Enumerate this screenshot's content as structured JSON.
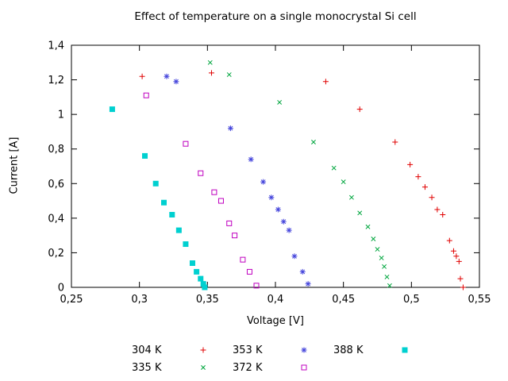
{
  "chart_data": {
    "type": "scatter",
    "title": "Effect of temperature on a single monocrystal Si cell",
    "xlabel": "Voltage [V]",
    "ylabel": "Current [A]",
    "xlim": [
      0.25,
      0.55
    ],
    "ylim": [
      0,
      1.4
    ],
    "grid": false,
    "legend_position": "bottom",
    "x_ticks": [
      {
        "v": 0.25,
        "label": "0,25"
      },
      {
        "v": 0.3,
        "label": "0,3"
      },
      {
        "v": 0.35,
        "label": "0,35"
      },
      {
        "v": 0.4,
        "label": "0,4"
      },
      {
        "v": 0.45,
        "label": "0,45"
      },
      {
        "v": 0.5,
        "label": "0,5"
      },
      {
        "v": 0.55,
        "label": "0,55"
      }
    ],
    "y_ticks": [
      {
        "v": 0.0,
        "label": "0"
      },
      {
        "v": 0.2,
        "label": "0,2"
      },
      {
        "v": 0.4,
        "label": "0,4"
      },
      {
        "v": 0.6,
        "label": "0,6"
      },
      {
        "v": 0.8,
        "label": "0,8"
      },
      {
        "v": 1.0,
        "label": "1"
      },
      {
        "v": 1.2,
        "label": "1,2"
      },
      {
        "v": 1.4,
        "label": "1,4"
      }
    ],
    "series": [
      {
        "name": "304 K",
        "marker": "plus",
        "color": "#e00000",
        "points": [
          [
            0.302,
            1.22
          ],
          [
            0.353,
            1.24
          ],
          [
            0.437,
            1.19
          ],
          [
            0.462,
            1.03
          ],
          [
            0.488,
            0.84
          ],
          [
            0.499,
            0.71
          ],
          [
            0.505,
            0.64
          ],
          [
            0.51,
            0.58
          ],
          [
            0.515,
            0.52
          ],
          [
            0.519,
            0.45
          ],
          [
            0.523,
            0.42
          ],
          [
            0.528,
            0.27
          ],
          [
            0.531,
            0.21
          ],
          [
            0.533,
            0.18
          ],
          [
            0.535,
            0.15
          ],
          [
            0.536,
            0.05
          ],
          [
            0.538,
            0.0
          ]
        ]
      },
      {
        "name": "335 K",
        "marker": "cross",
        "color": "#00a63e",
        "points": [
          [
            0.352,
            1.3
          ],
          [
            0.366,
            1.23
          ],
          [
            0.403,
            1.07
          ],
          [
            0.428,
            0.84
          ],
          [
            0.443,
            0.69
          ],
          [
            0.45,
            0.61
          ],
          [
            0.456,
            0.52
          ],
          [
            0.462,
            0.43
          ],
          [
            0.468,
            0.35
          ],
          [
            0.472,
            0.28
          ],
          [
            0.475,
            0.22
          ],
          [
            0.478,
            0.17
          ],
          [
            0.48,
            0.12
          ],
          [
            0.482,
            0.06
          ],
          [
            0.484,
            0.01
          ]
        ]
      },
      {
        "name": "353 K",
        "marker": "asterisk",
        "color": "#4646dc",
        "points": [
          [
            0.32,
            1.22
          ],
          [
            0.327,
            1.19
          ],
          [
            0.367,
            0.92
          ],
          [
            0.382,
            0.74
          ],
          [
            0.391,
            0.61
          ],
          [
            0.397,
            0.52
          ],
          [
            0.402,
            0.45
          ],
          [
            0.406,
            0.38
          ],
          [
            0.41,
            0.33
          ],
          [
            0.414,
            0.18
          ],
          [
            0.42,
            0.09
          ],
          [
            0.424,
            0.02
          ]
        ]
      },
      {
        "name": "372 K",
        "marker": "open-square",
        "color": "#c000c0",
        "points": [
          [
            0.305,
            1.11
          ],
          [
            0.334,
            0.83
          ],
          [
            0.345,
            0.66
          ],
          [
            0.355,
            0.55
          ],
          [
            0.36,
            0.5
          ],
          [
            0.366,
            0.37
          ],
          [
            0.37,
            0.3
          ],
          [
            0.376,
            0.16
          ],
          [
            0.381,
            0.09
          ],
          [
            0.386,
            0.01
          ]
        ]
      },
      {
        "name": "388 K",
        "marker": "filled-square",
        "color": "#00d0d0",
        "points": [
          [
            0.28,
            1.03
          ],
          [
            0.304,
            0.76
          ],
          [
            0.312,
            0.6
          ],
          [
            0.318,
            0.49
          ],
          [
            0.324,
            0.42
          ],
          [
            0.329,
            0.33
          ],
          [
            0.334,
            0.25
          ],
          [
            0.339,
            0.14
          ],
          [
            0.342,
            0.09
          ],
          [
            0.345,
            0.05
          ],
          [
            0.347,
            0.02
          ],
          [
            0.348,
            0.0
          ]
        ]
      }
    ]
  }
}
